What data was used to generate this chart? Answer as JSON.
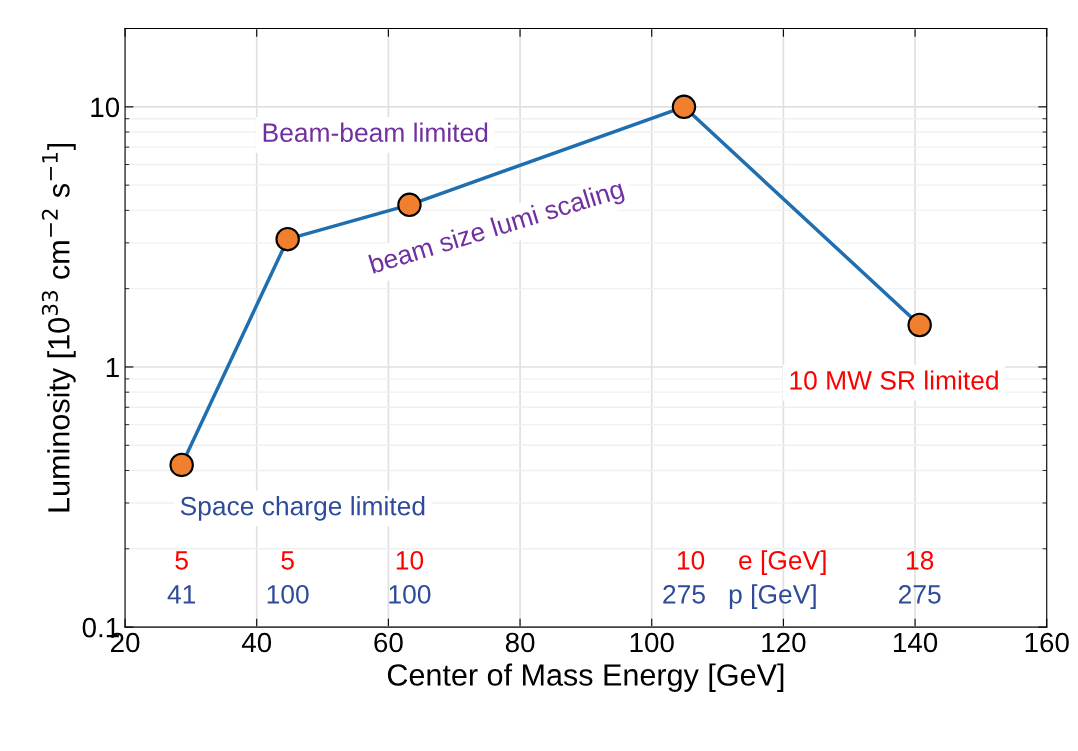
{
  "chart_data": {
    "type": "line",
    "xlabel": "Center of Mass Energy [GeV]",
    "ylabel": "Luminosity [10$^{33}$ cm$^{−2}$ s$^{−1}$]",
    "x": [
      28.6,
      44.7,
      63.2,
      104.9,
      140.7
    ],
    "series": [
      {
        "color": "#1f6fb0",
        "colors": [
          "#f08030",
          "#f08030",
          "#f08030",
          "#f08030",
          "#f08030"
        ],
        "values": [
          0.42,
          3.1,
          4.2,
          10,
          1.45
        ]
      }
    ],
    "marker": "circle",
    "line_style": "solid",
    "log": "y",
    "xlim": [
      20,
      160
    ],
    "xticks": [
      20,
      40,
      60,
      80,
      100,
      120,
      140,
      160
    ],
    "ylim": [
      0.1,
      20
    ],
    "yticks": [
      0.1,
      1,
      10
    ],
    "grid": true,
    "annotations": [
      "Beam-beam limited",
      "beam size lumi scaling",
      "Space charge limited",
      "10 MW SR limited",
      "5",
      "5",
      "10",
      "10",
      "e [GeV]",
      "18",
      "41",
      "100",
      "100",
      "275",
      "p [GeV]",
      "275"
    ]
  }
}
